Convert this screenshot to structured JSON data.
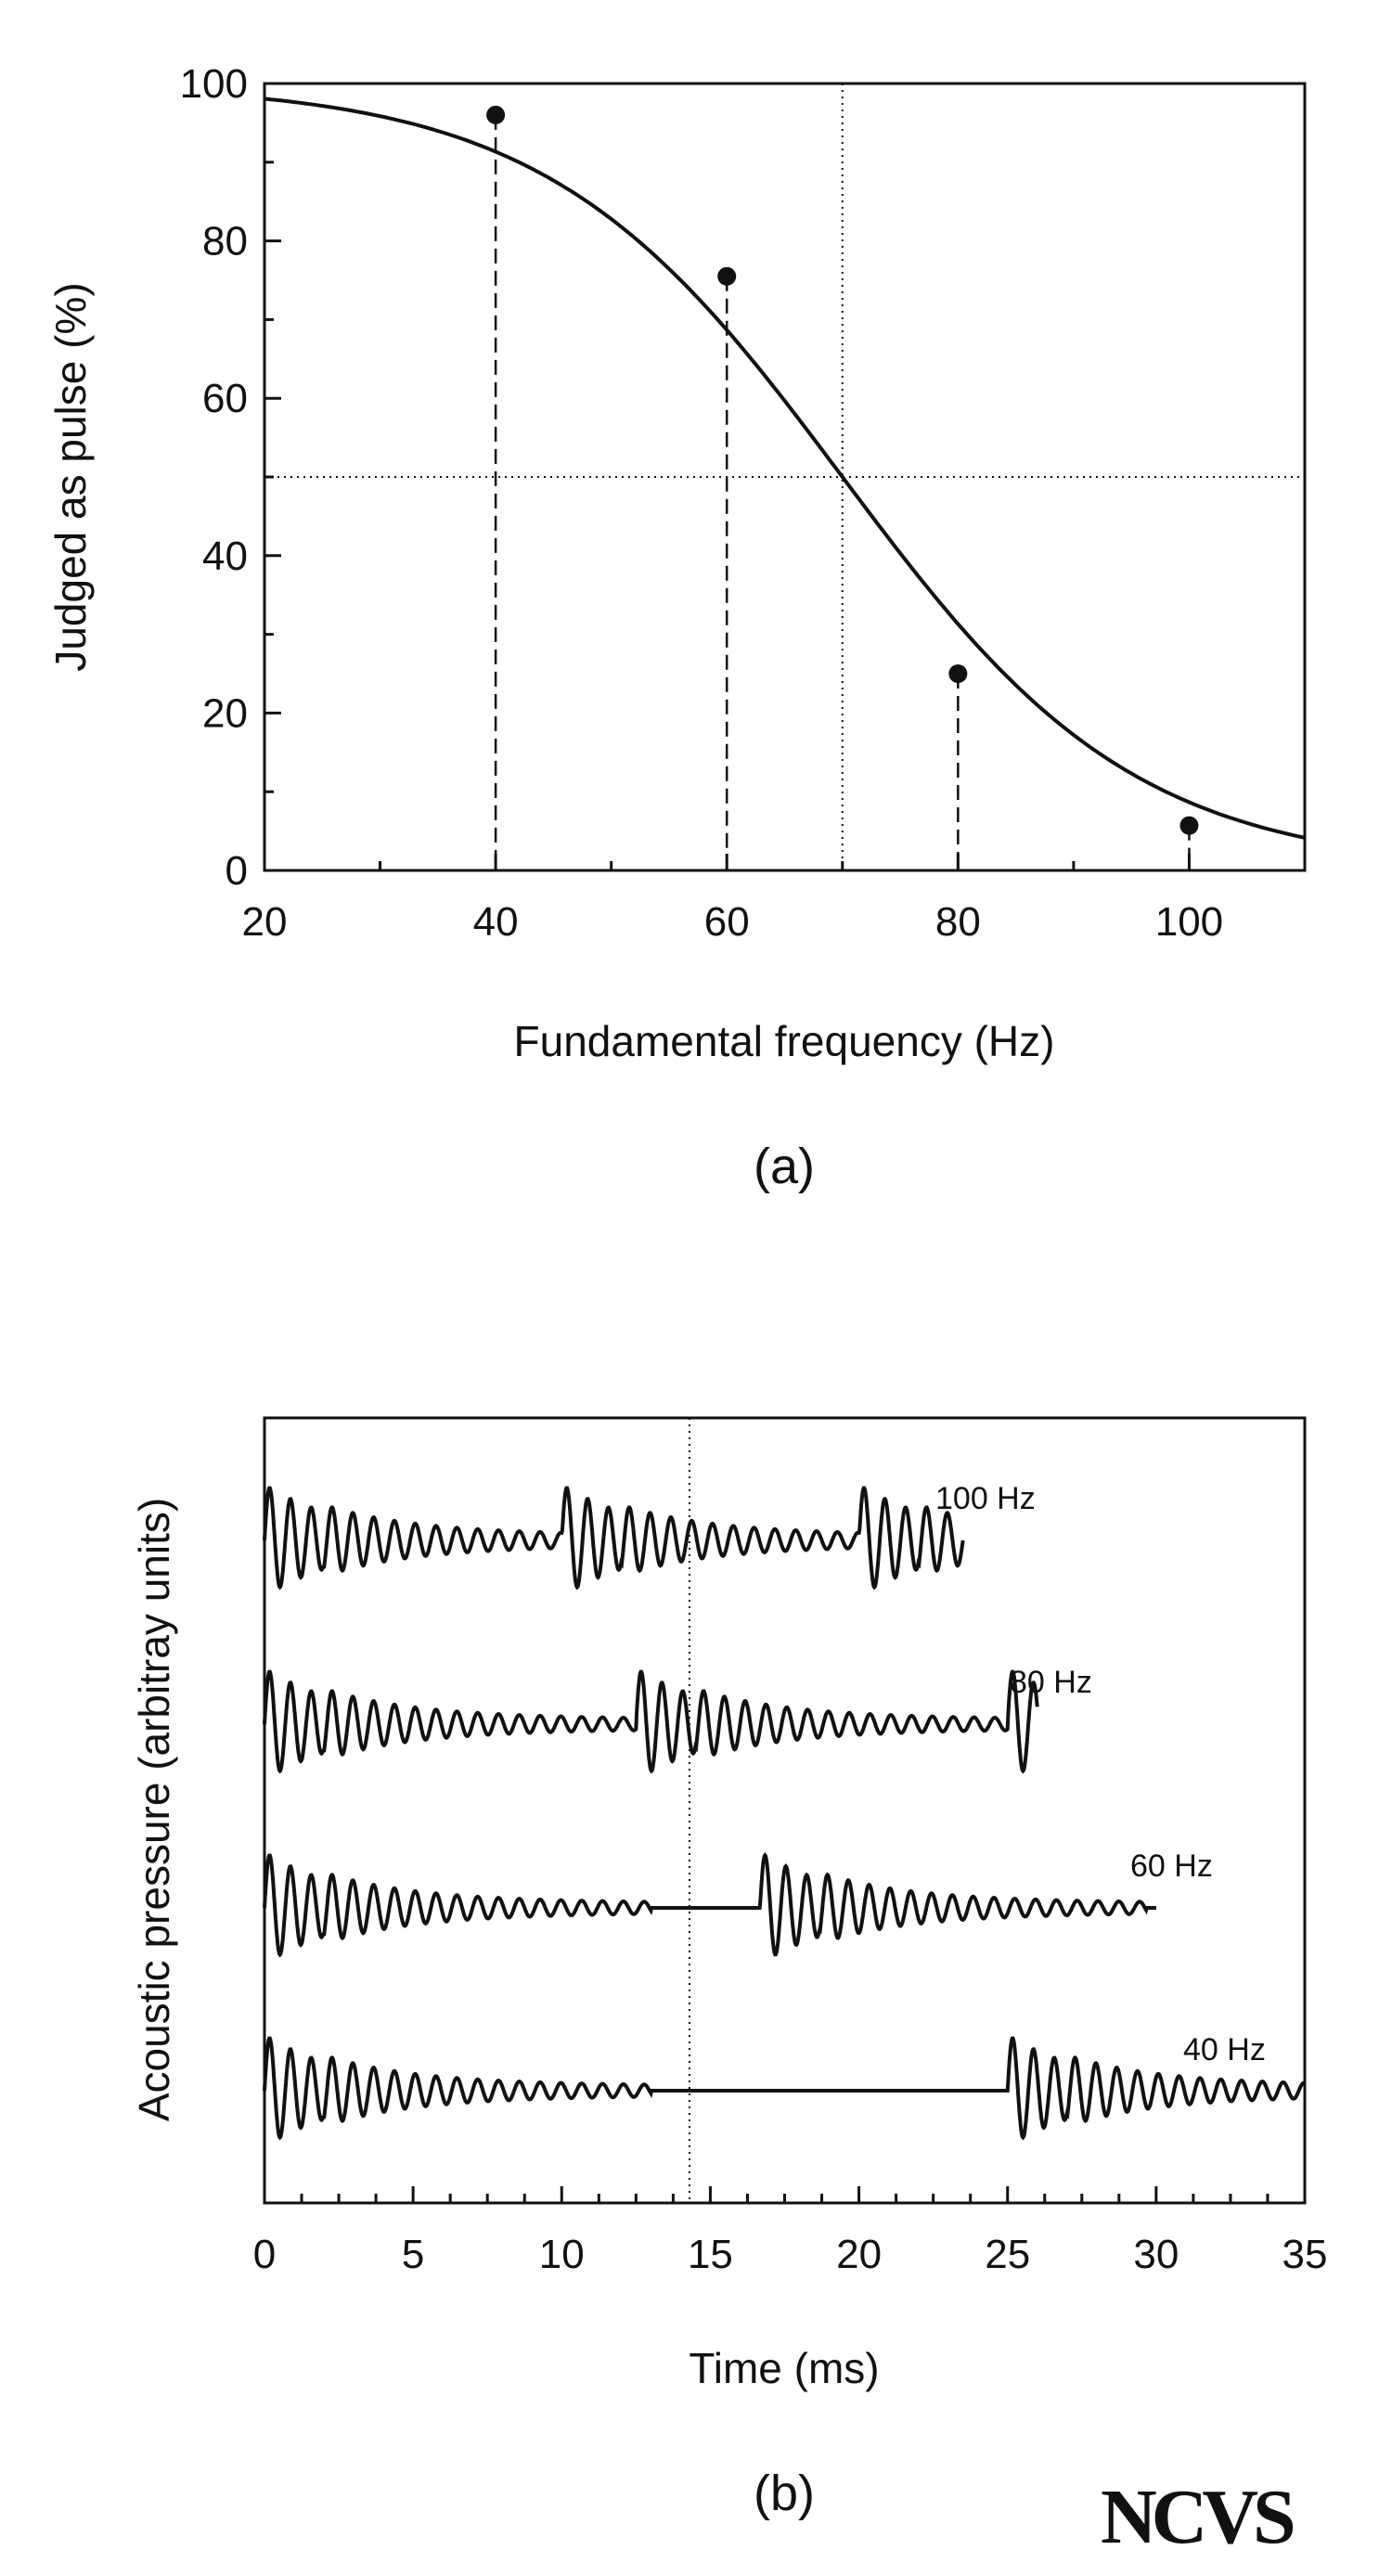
{
  "chart_data": [
    {
      "type": "line",
      "panel_label": "(a)",
      "xlabel": "Fundamental frequency (Hz)",
      "ylabel": "Judged as pulse (%)",
      "xlim": [
        20,
        110
      ],
      "ylim": [
        0,
        100
      ],
      "xticks": [
        20,
        40,
        60,
        80,
        100
      ],
      "yticks": [
        0,
        20,
        40,
        60,
        80,
        100
      ],
      "x_minor_step": 10,
      "y_minor_step": 10,
      "grid": false,
      "curve": {
        "kind": "logistic",
        "midpoint": 70,
        "x": [
          20,
          30,
          40,
          50,
          60,
          65,
          70,
          75,
          80,
          90,
          100,
          110
        ],
        "y": [
          99.8,
          99.0,
          95.9,
          87.1,
          75.5,
          63.0,
          50.0,
          37.0,
          24.9,
          12.9,
          5.6,
          2.3
        ]
      },
      "points": {
        "x": [
          40,
          60,
          80,
          100
        ],
        "y": [
          96,
          75.5,
          25,
          5.7
        ]
      },
      "reference_lines": {
        "horizontal": 50,
        "vertical": 70
      }
    },
    {
      "type": "line",
      "panel_label": "(b)",
      "xlabel": "Time (ms)",
      "ylabel": "Acoustic pressure (arbitray units)",
      "xlim": [
        0,
        35
      ],
      "xticks": [
        0,
        5,
        10,
        15,
        20,
        25,
        30,
        35
      ],
      "x_minor_step": 1.25,
      "reference_line_x": 14.3,
      "series": [
        {
          "name": "100 Hz",
          "period_ms": 10,
          "end_ms": 23.5
        },
        {
          "name": "80 Hz",
          "period_ms": 12.5,
          "end_ms": 26
        },
        {
          "name": "60 Hz",
          "period_ms": 16.67,
          "end_ms": 30
        },
        {
          "name": "40 Hz",
          "period_ms": 25,
          "end_ms": 35
        }
      ]
    }
  ],
  "logo": {
    "text": "NCVS"
  }
}
